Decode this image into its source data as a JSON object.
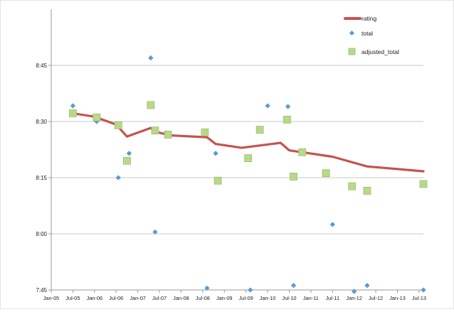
{
  "chart_data": {
    "type": "scatter",
    "x_ticks": [
      "Jan-05",
      "Jul-05",
      "Jan-06",
      "Jul-06",
      "Jan-07",
      "Jul-07",
      "Jan-08",
      "Jul-08",
      "Jan-09",
      "Jul-09",
      "Jan-10",
      "Jul-10",
      "Jan-11",
      "Jul-11",
      "Jan-12",
      "Jul-12",
      "Jan-13",
      "Jul-13"
    ],
    "y_ticks": [
      "7:45",
      "8:00",
      "8:15",
      "8:30",
      "8:45"
    ],
    "ylim_minutes": [
      465,
      540
    ],
    "xlim_years": [
      2005.0,
      2013.6
    ],
    "grid": "horizontal",
    "legend_position": "top-right",
    "colors": {
      "rating": "#c8514f",
      "total": "#5b9bd5",
      "adjusted_total": "#b9d98a",
      "adjusted_total_edge": "#97c267",
      "grid": "#c8c8c8",
      "axis": "#999999"
    },
    "series": [
      {
        "name": "rating",
        "type": "line",
        "points": [
          [
            2005.5,
            512.2
          ],
          [
            2006.0,
            511.3
          ],
          [
            2006.5,
            509.2
          ],
          [
            2006.75,
            506.0
          ],
          [
            2007.3,
            508.3
          ],
          [
            2007.4,
            507.3
          ],
          [
            2007.75,
            506.3
          ],
          [
            2008.6,
            505.8
          ],
          [
            2008.8,
            504.0
          ],
          [
            2009.4,
            503.0
          ],
          [
            2010.3,
            504.3
          ],
          [
            2010.5,
            502.3
          ],
          [
            2011.5,
            500.6
          ],
          [
            2012.3,
            498.0
          ],
          [
            2013.6,
            496.7
          ]
        ]
      },
      {
        "name": "total",
        "type": "scatter",
        "points": [
          [
            2005.5,
            514.2
          ],
          [
            2006.05,
            510.0
          ],
          [
            2006.55,
            495.0
          ],
          [
            2006.8,
            501.5
          ],
          [
            2007.3,
            527.0
          ],
          [
            2007.4,
            480.5
          ],
          [
            2007.65,
            507.0
          ],
          [
            2008.6,
            465.5
          ],
          [
            2008.8,
            501.5
          ],
          [
            2009.6,
            465.0
          ],
          [
            2010.0,
            514.2
          ],
          [
            2010.47,
            514.0
          ],
          [
            2010.6,
            466.2
          ],
          [
            2011.5,
            482.5
          ],
          [
            2012.0,
            464.6
          ],
          [
            2012.3,
            466.2
          ],
          [
            2013.6,
            465.0
          ]
        ]
      },
      {
        "name": "adjusted_total",
        "type": "scatter",
        "points": [
          [
            2005.5,
            512.2
          ],
          [
            2006.05,
            511.1
          ],
          [
            2006.55,
            509.0
          ],
          [
            2006.75,
            499.5
          ],
          [
            2007.3,
            514.4
          ],
          [
            2007.4,
            507.6
          ],
          [
            2007.7,
            506.5
          ],
          [
            2008.55,
            507.1
          ],
          [
            2008.85,
            494.2
          ],
          [
            2009.55,
            500.2
          ],
          [
            2009.82,
            507.8
          ],
          [
            2010.45,
            510.5
          ],
          [
            2010.6,
            495.3
          ],
          [
            2010.8,
            501.8
          ],
          [
            2011.35,
            496.2
          ],
          [
            2011.95,
            492.7
          ],
          [
            2012.3,
            491.5
          ],
          [
            2013.6,
            493.3
          ]
        ]
      }
    ],
    "legend": [
      "rating",
      "total",
      "adjusted_total"
    ]
  }
}
